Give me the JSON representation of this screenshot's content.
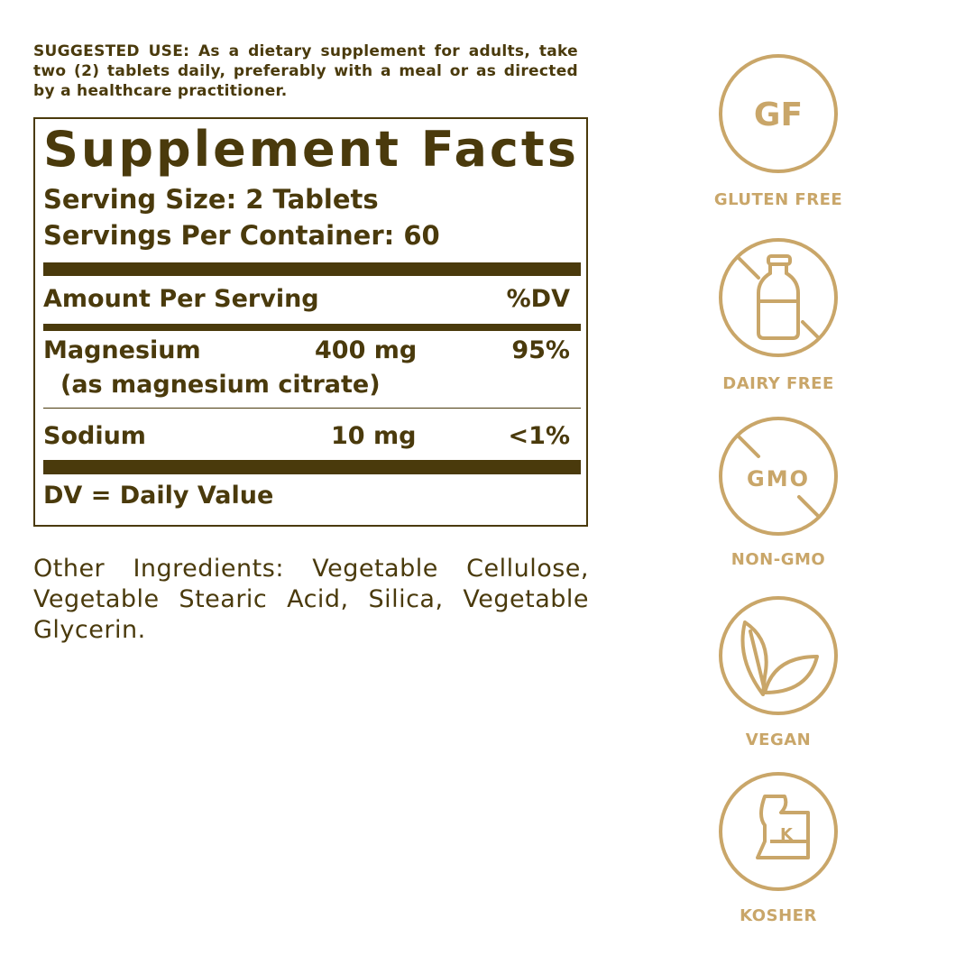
{
  "suggested_use": "SUGGESTED USE: As a dietary supplement for adults, take two (2) tablets daily, preferably with a meal or as directed by a healthcare practitioner.",
  "facts": {
    "title": "Supplement Facts",
    "serving_size": "Serving Size: 2 Tablets",
    "servings_per_container": "Servings Per Container: 60",
    "amount_header": "Amount Per Serving",
    "dv_header": "%DV",
    "rows": [
      {
        "name": "Magnesium",
        "sub": "(as magnesium citrate)",
        "amount": "400 mg",
        "dv": "95%"
      },
      {
        "name": "Sodium",
        "amount": "10 mg",
        "dv": "<1%"
      }
    ],
    "footnote": "DV = Daily Value"
  },
  "other_ingredients": "Other Ingredients: Vegetable Cellulose, Vegetable Stearic Acid, Silica, Vegetable Glycerin.",
  "colors": {
    "text": "#4a3a0c",
    "badge": "#c9a669"
  },
  "badges": [
    {
      "icon": "gluten-free-icon",
      "icon_text": "GF",
      "label": "GLUTEN FREE"
    },
    {
      "icon": "dairy-free-icon",
      "label": "DAIRY FREE"
    },
    {
      "icon": "non-gmo-icon",
      "icon_text": "GMO",
      "label": "NON-GMO"
    },
    {
      "icon": "vegan-leaf-icon",
      "label": "VEGAN"
    },
    {
      "icon": "kosher-icon",
      "icon_text": "K",
      "label": "KOSHER"
    }
  ]
}
